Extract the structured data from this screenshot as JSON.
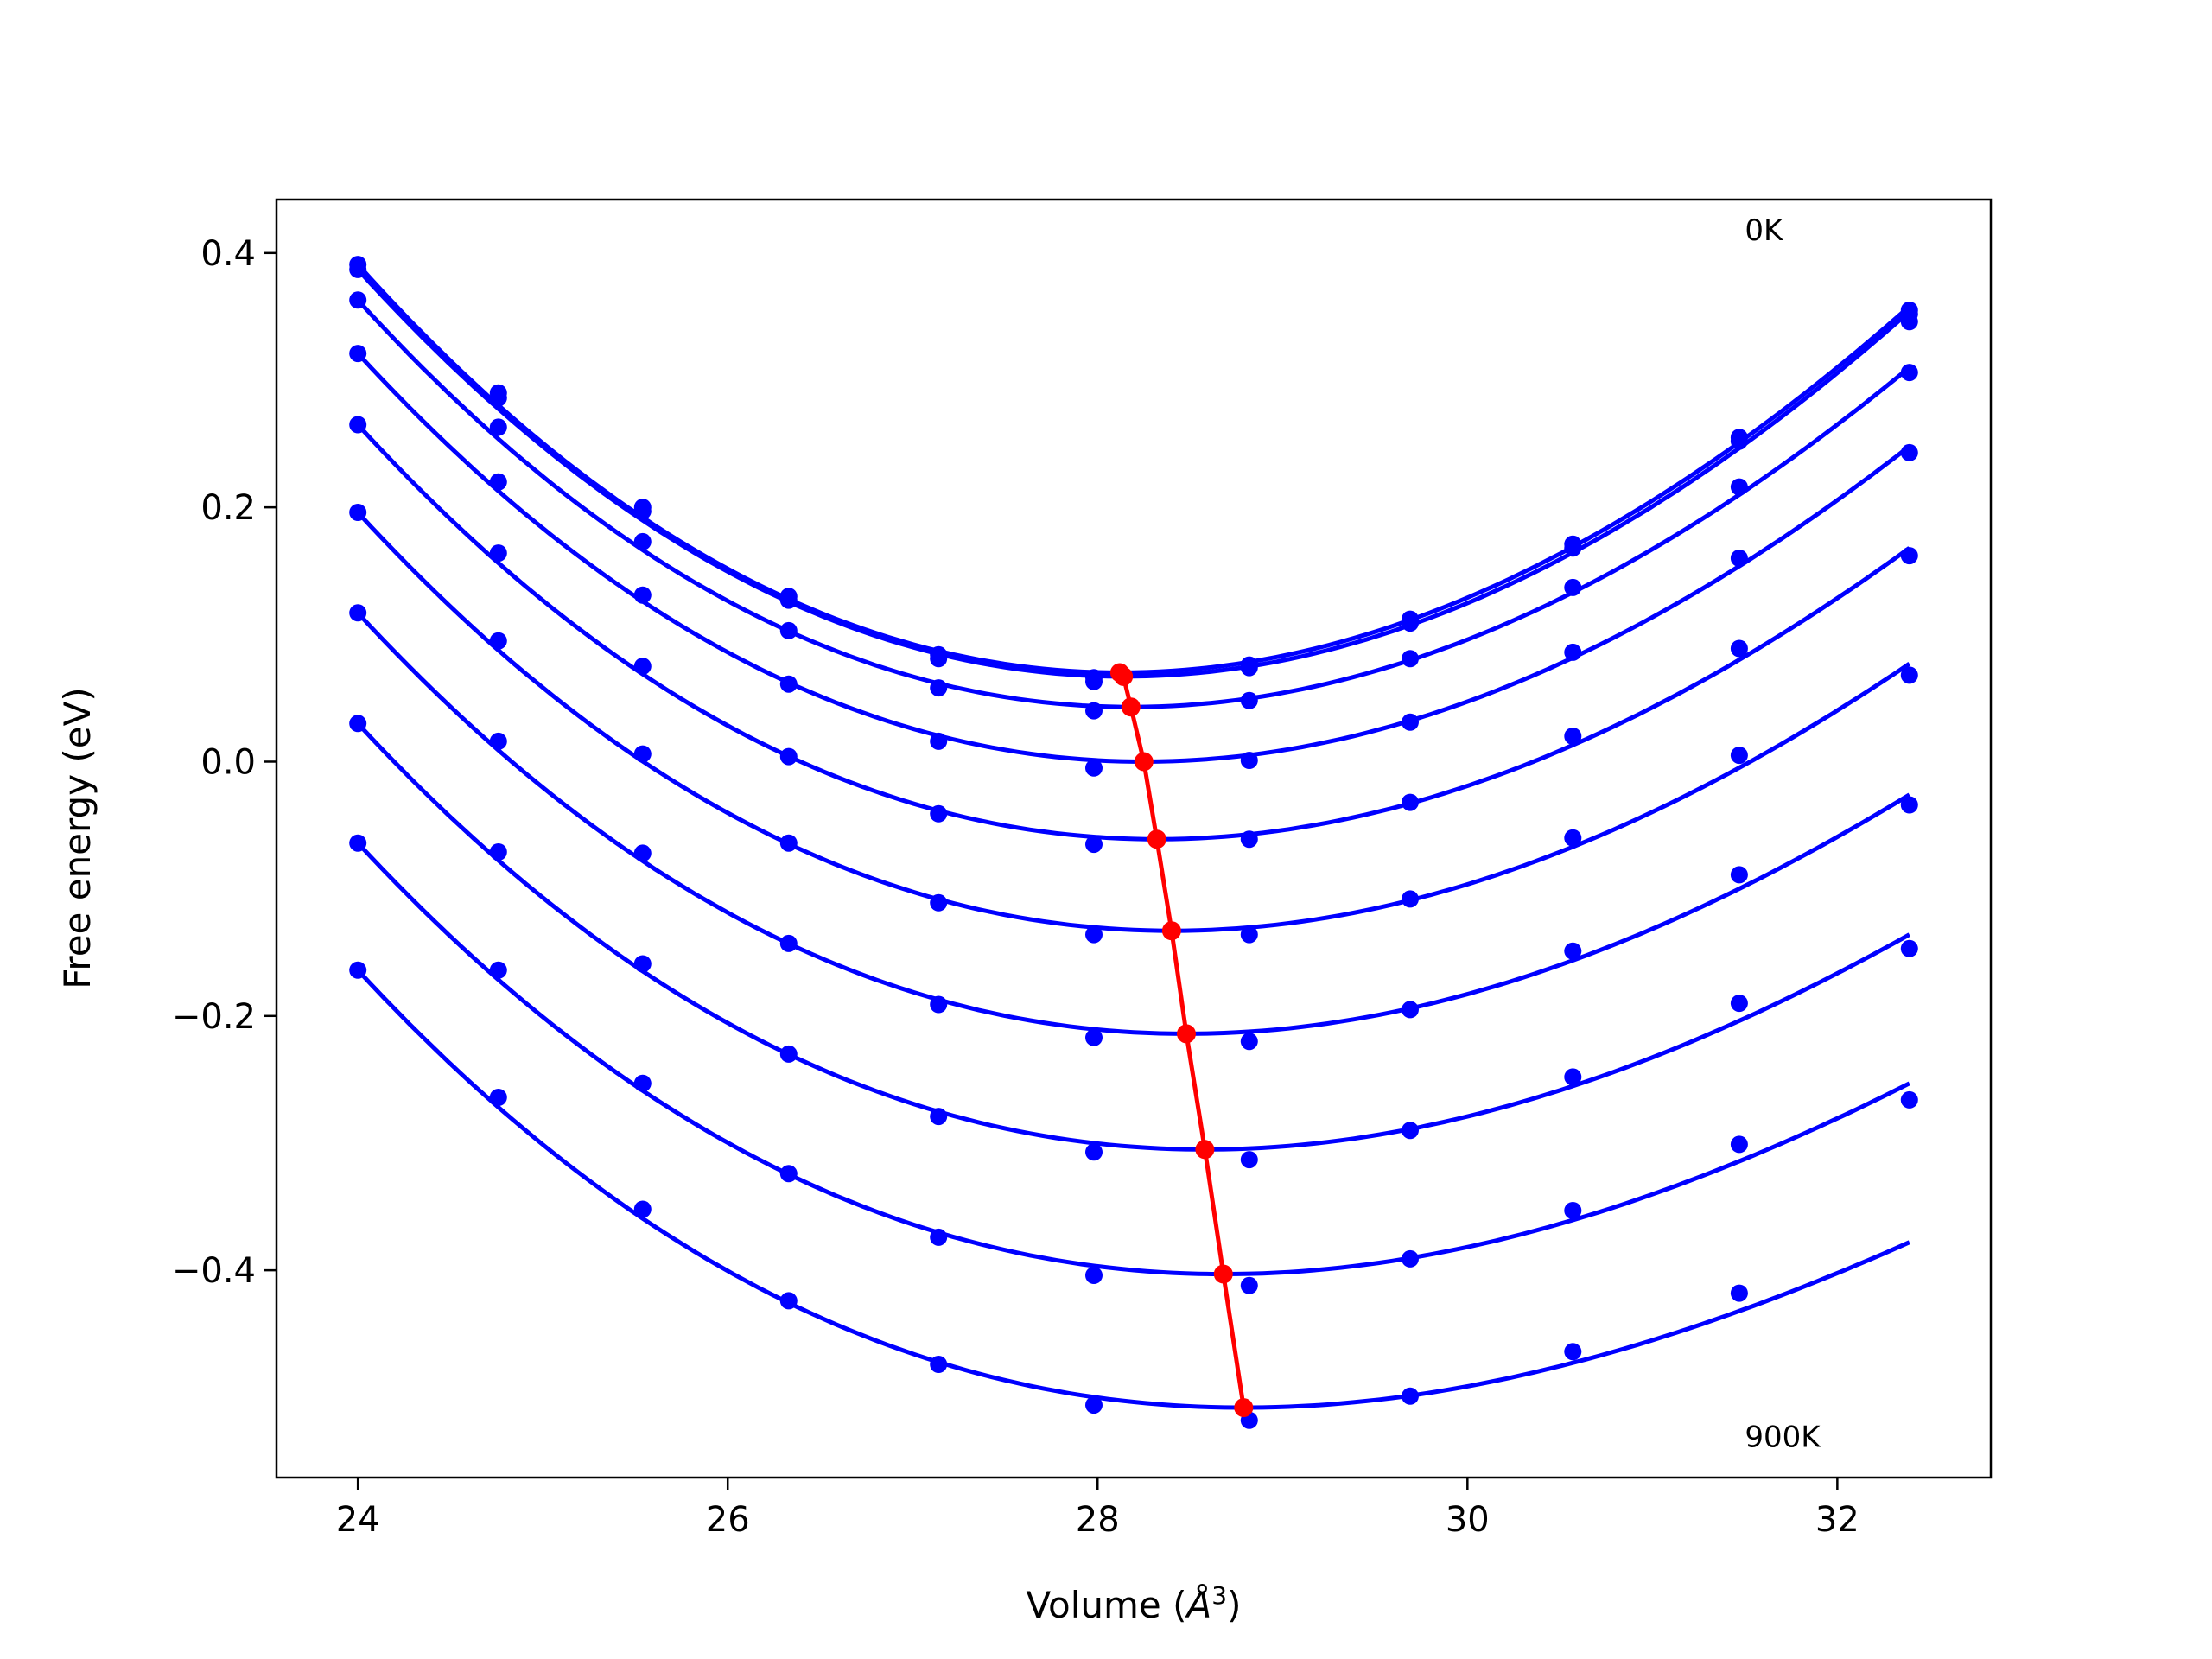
{
  "chart_data": {
    "type": "scatter",
    "title": "",
    "xlabel": "Volume (",
    "xlabel_symbol": "Å",
    "xlabel_exponent": "3",
    "xlabel_close": ")",
    "ylabel": "Free energy (eV)",
    "xlim": [
      23.56,
      32.83
    ],
    "ylim": [
      -0.563,
      0.442
    ],
    "xticks": [
      24,
      26,
      28,
      30,
      32
    ],
    "xtick_labels": [
      "24",
      "26",
      "28",
      "30",
      "32"
    ],
    "yticks": [
      -0.4,
      -0.2,
      0.0,
      0.2,
      0.4
    ],
    "ytick_labels": [
      "−0.4",
      "−0.2",
      "0.0",
      "0.2",
      "0.4"
    ],
    "grid": false,
    "legend": "none",
    "colors": {
      "points": "#0000ff",
      "fits": "#0000ff",
      "minima": "#ff0000"
    },
    "annotations": [
      {
        "text": "0K",
        "x": 31.5,
        "y": 0.41
      },
      {
        "text": "900K",
        "x": 31.5,
        "y": -0.539
      }
    ],
    "x": [
      24.0,
      24.76,
      25.54,
      26.33,
      27.14,
      27.98,
      28.82,
      29.69,
      30.57,
      31.47,
      32.39
    ],
    "series": [
      {
        "values": [
          0.391,
          0.29,
          0.2,
          0.13,
          0.084,
          0.066,
          0.076,
          0.112,
          0.171,
          0.255,
          0.355
        ],
        "fit_min": {
          "x": 28.12,
          "y": 0.07
        }
      },
      {
        "values": [
          0.387,
          0.286,
          0.197,
          0.127,
          0.081,
          0.063,
          0.074,
          0.109,
          0.168,
          0.252,
          0.352
        ],
        "fit_min": {
          "x": 28.14,
          "y": 0.067
        }
      },
      {
        "values": [
          0.363,
          0.263,
          0.173,
          0.103,
          0.058,
          0.04,
          0.048,
          0.081,
          0.137,
          0.216,
          0.346
        ],
        "fit_min": {
          "x": 28.18,
          "y": 0.043
        }
      },
      {
        "values": [
          0.321,
          0.22,
          0.131,
          0.061,
          0.016,
          -0.005,
          0.001,
          0.031,
          0.086,
          0.16,
          0.306
        ],
        "fit_min": {
          "x": 28.25,
          "y": 0.0
        }
      },
      {
        "values": [
          0.265,
          0.164,
          0.075,
          0.004,
          -0.041,
          -0.065,
          -0.061,
          -0.032,
          0.02,
          0.089,
          0.243
        ],
        "fit_min": {
          "x": 28.32,
          "y": -0.061
        }
      },
      {
        "values": [
          0.196,
          0.095,
          0.006,
          -0.064,
          -0.111,
          -0.136,
          -0.136,
          -0.108,
          -0.06,
          0.005,
          0.162
        ],
        "fit_min": {
          "x": 28.4,
          "y": -0.133
        }
      },
      {
        "values": [
          0.117,
          0.016,
          -0.072,
          -0.143,
          -0.191,
          -0.217,
          -0.22,
          -0.195,
          -0.149,
          -0.089,
          0.068
        ],
        "fit_min": {
          "x": 28.48,
          "y": -0.214
        }
      },
      {
        "values": [
          0.03,
          -0.071,
          -0.159,
          -0.23,
          -0.279,
          -0.307,
          -0.313,
          -0.29,
          -0.248,
          -0.19,
          -0.034
        ],
        "fit_min": {
          "x": 28.58,
          "y": -0.305
        }
      },
      {
        "values": [
          -0.064,
          -0.164,
          -0.253,
          -0.324,
          -0.374,
          -0.404,
          -0.412,
          -0.391,
          -0.353,
          -0.301,
          -0.147
        ],
        "fit_min": {
          "x": 28.68,
          "y": -0.403
        }
      },
      {
        "values": [
          -0.164,
          -0.264,
          -0.352,
          -0.424,
          -0.474,
          -0.506,
          -0.518,
          -0.499,
          -0.464,
          -0.418,
          -0.266
        ],
        "fit_min": {
          "x": 28.79,
          "y": -0.508
        }
      }
    ],
    "fit_end_y": [
      0.358,
      0.354,
      0.31,
      0.248,
      0.168,
      0.077,
      -0.026,
      -0.136,
      -0.253,
      -0.378
    ]
  }
}
